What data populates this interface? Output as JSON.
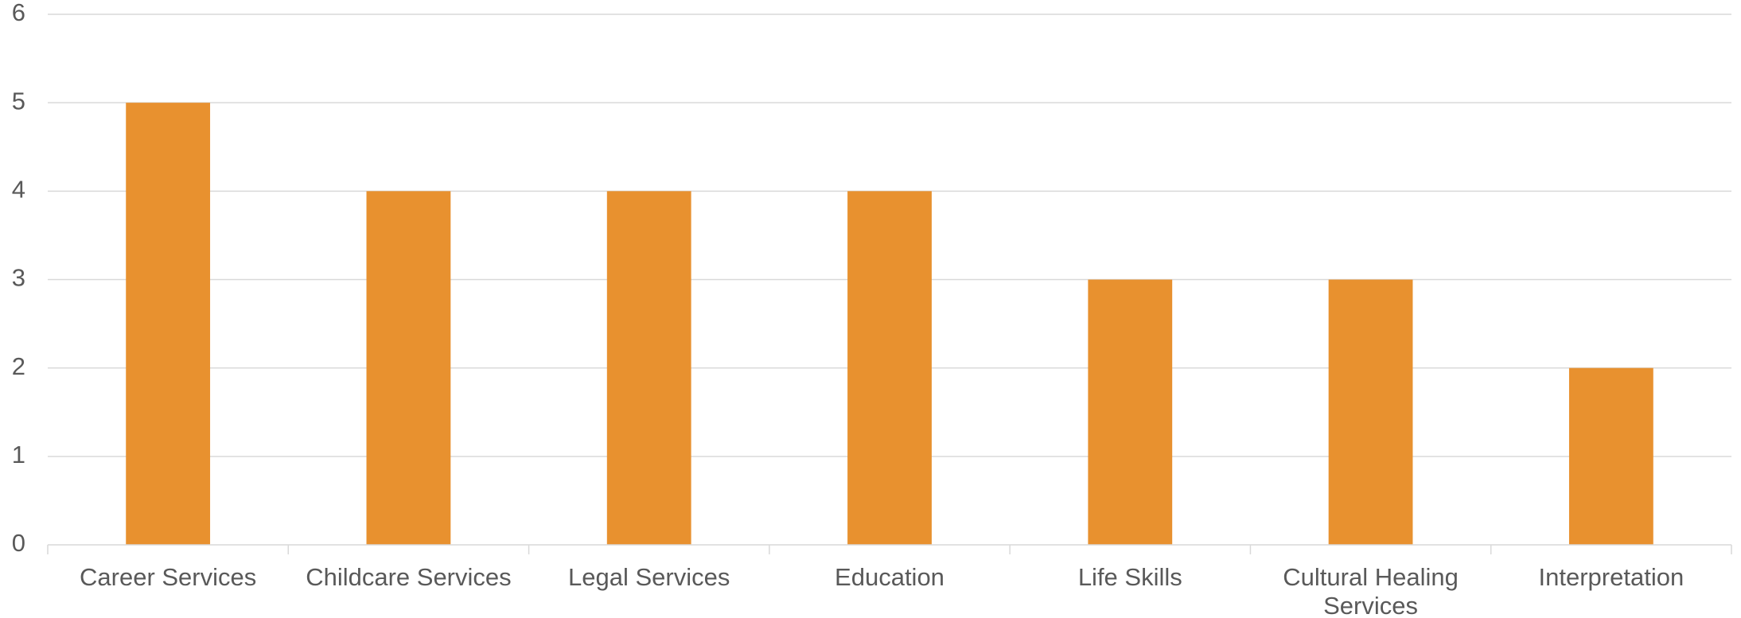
{
  "chart_data": {
    "type": "bar",
    "title": "",
    "xlabel": "",
    "ylabel": "",
    "categories": [
      "Career Services",
      "Childcare Services",
      "Legal Services",
      "Education",
      "Life Skills",
      "Cultural Healing Services",
      "Interpretation"
    ],
    "category_lines": [
      [
        "Career Services"
      ],
      [
        "Childcare Services"
      ],
      [
        "Legal Services"
      ],
      [
        "Education"
      ],
      [
        "Life Skills"
      ],
      [
        "Cultural Healing",
        "Services"
      ],
      [
        "Interpretation"
      ]
    ],
    "values": [
      5,
      4,
      4,
      4,
      3,
      3,
      2
    ],
    "ylim": [
      0,
      6
    ],
    "yticks": [
      "0",
      "1",
      "2",
      "3",
      "4",
      "5",
      "6"
    ],
    "grid": true,
    "legend": "none",
    "bar_color": "#E8912F"
  }
}
